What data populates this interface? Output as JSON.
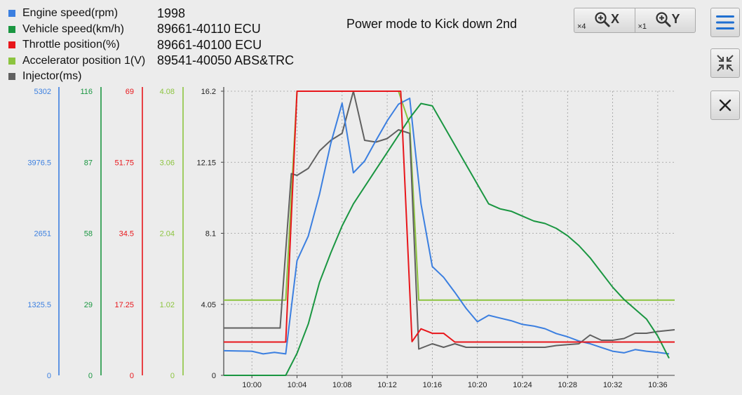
{
  "legend": [
    {
      "label": "Engine speed(rpm)",
      "color": "#3b7fe0"
    },
    {
      "label": "Vehicle speed(km/h)",
      "color": "#1a9641"
    },
    {
      "label": "Throttle position(%)",
      "color": "#e8161b"
    },
    {
      "label": "Accelerator position 1(V)",
      "color": "#8cc43f"
    },
    {
      "label": "Injector(ms)",
      "color": "#606060"
    }
  ],
  "info": [
    "1998",
    "89661-40110 ECU",
    "89661-40100 ECU",
    "89541-40050 ABS&TRC"
  ],
  "title": "Power mode to Kick down 2nd",
  "toolbar": {
    "zoom_x": {
      "multiplier": "×4",
      "axis": "X",
      "icon": "zoom-in-icon"
    },
    "zoom_y": {
      "multiplier": "×1",
      "axis": "Y",
      "icon": "zoom-in-icon"
    },
    "menu_icon": "hamburger-menu-icon",
    "shrink_icon": "collapse-arrows-icon",
    "close_icon": "close-icon"
  },
  "chart_data": {
    "type": "line",
    "x_ticks": [
      "10:00",
      "10:04",
      "10:08",
      "10:12",
      "10:16",
      "10:20",
      "10:24",
      "10:28",
      "10:32",
      "10:36"
    ],
    "x_tick_values": [
      0,
      4,
      8,
      12,
      16,
      20,
      24,
      28,
      32,
      36
    ],
    "xlim": [
      -2.5,
      37.5
    ],
    "grid": true,
    "axes": [
      {
        "name": "Engine speed(rpm)",
        "color": "#3b7fe0",
        "ticks": [
          "0",
          "1325.5",
          "2651",
          "3976.5",
          "5302"
        ],
        "ylim": [
          0,
          5302
        ]
      },
      {
        "name": "Vehicle speed(km/h)",
        "color": "#1a9641",
        "ticks": [
          "0",
          "29",
          "58",
          "87",
          "116"
        ],
        "ylim": [
          0,
          116
        ]
      },
      {
        "name": "Throttle position(%)",
        "color": "#e8161b",
        "ticks": [
          "0",
          "17.25",
          "34.5",
          "51.75",
          "69"
        ],
        "ylim": [
          0,
          69
        ]
      },
      {
        "name": "Accelerator position 1(V)",
        "color": "#8cc43f",
        "ticks": [
          "0",
          "1.02",
          "2.04",
          "3.06",
          "4.08"
        ],
        "ylim": [
          0,
          4.08
        ]
      },
      {
        "name": "Injector(ms)",
        "color": "#606060",
        "ticks": [
          "0",
          "4.05",
          "8.1",
          "12.15",
          "16.2"
        ],
        "ylim": [
          0,
          16.2
        ]
      }
    ],
    "series": [
      {
        "name": "Engine speed(rpm)",
        "color": "#3b7fe0",
        "axis": 0,
        "points": [
          [
            -2.5,
            460
          ],
          [
            0,
            450
          ],
          [
            1,
            400
          ],
          [
            2,
            430
          ],
          [
            3,
            400
          ],
          [
            4,
            2140
          ],
          [
            5,
            2600
          ],
          [
            6,
            3380
          ],
          [
            7,
            4330
          ],
          [
            8,
            5080
          ],
          [
            9,
            3780
          ],
          [
            10,
            4000
          ],
          [
            11,
            4380
          ],
          [
            12,
            4750
          ],
          [
            13,
            5060
          ],
          [
            14,
            5170
          ],
          [
            15,
            3200
          ],
          [
            16,
            2030
          ],
          [
            17,
            1830
          ],
          [
            18,
            1550
          ],
          [
            19,
            1250
          ],
          [
            20,
            1000
          ],
          [
            21,
            1120
          ],
          [
            22,
            1070
          ],
          [
            23,
            1020
          ],
          [
            24,
            950
          ],
          [
            25,
            920
          ],
          [
            26,
            870
          ],
          [
            27,
            780
          ],
          [
            28,
            720
          ],
          [
            29,
            640
          ],
          [
            30,
            590
          ],
          [
            31,
            520
          ],
          [
            32,
            450
          ],
          [
            33,
            420
          ],
          [
            34,
            480
          ],
          [
            35,
            450
          ],
          [
            36,
            430
          ],
          [
            37,
            400
          ]
        ]
      },
      {
        "name": "Vehicle speed(km/h)",
        "color": "#1a9641",
        "axis": 1,
        "points": [
          [
            -2.5,
            0
          ],
          [
            3,
            0
          ],
          [
            4,
            9
          ],
          [
            5,
            21
          ],
          [
            6,
            38
          ],
          [
            7,
            50
          ],
          [
            8,
            61
          ],
          [
            9,
            70
          ],
          [
            10,
            77
          ],
          [
            11,
            84
          ],
          [
            12,
            91
          ],
          [
            13,
            98
          ],
          [
            14,
            105
          ],
          [
            15,
            111
          ],
          [
            16,
            110
          ],
          [
            17,
            102
          ],
          [
            18,
            94
          ],
          [
            19,
            86
          ],
          [
            20,
            78
          ],
          [
            21,
            70
          ],
          [
            22,
            68
          ],
          [
            23,
            67
          ],
          [
            24,
            65
          ],
          [
            25,
            63
          ],
          [
            26,
            62
          ],
          [
            27,
            60
          ],
          [
            28,
            57
          ],
          [
            29,
            53
          ],
          [
            30,
            48
          ],
          [
            31,
            42
          ],
          [
            32,
            36
          ],
          [
            33,
            31
          ],
          [
            34,
            27
          ],
          [
            35,
            23
          ],
          [
            36,
            16
          ],
          [
            37,
            7
          ]
        ]
      },
      {
        "name": "Throttle position(%)",
        "color": "#e8161b",
        "axis": 2,
        "points": [
          [
            -2.5,
            8.1
          ],
          [
            3,
            8.1
          ],
          [
            4,
            69
          ],
          [
            13.2,
            69
          ],
          [
            14.2,
            8.2
          ],
          [
            15,
            11.3
          ],
          [
            16,
            10.2
          ],
          [
            17,
            10.2
          ],
          [
            18,
            8.1
          ],
          [
            37.5,
            8.1
          ]
        ]
      },
      {
        "name": "Accelerator position 1(V)",
        "color": "#8cc43f",
        "axis": 3,
        "points": [
          [
            -2.5,
            1.08
          ],
          [
            3,
            1.08
          ],
          [
            4,
            4.08
          ],
          [
            13,
            4.08
          ],
          [
            14,
            3.6
          ],
          [
            14.8,
            1.08
          ],
          [
            37.5,
            1.08
          ]
        ]
      },
      {
        "name": "Injector(ms)",
        "color": "#606060",
        "axis": 4,
        "points": [
          [
            -2.5,
            2.7
          ],
          [
            2.5,
            2.7
          ],
          [
            3.5,
            11.5
          ],
          [
            4,
            11.4
          ],
          [
            5,
            11.8
          ],
          [
            6,
            12.8
          ],
          [
            7,
            13.4
          ],
          [
            8,
            13.8
          ],
          [
            9,
            16.2
          ],
          [
            10,
            13.4
          ],
          [
            11,
            13.3
          ],
          [
            12,
            13.5
          ],
          [
            13,
            14.0
          ],
          [
            14,
            13.8
          ],
          [
            14.8,
            1.5
          ],
          [
            16,
            1.8
          ],
          [
            17,
            1.6
          ],
          [
            18,
            1.8
          ],
          [
            19,
            1.6
          ],
          [
            20,
            1.6
          ],
          [
            22,
            1.6
          ],
          [
            24,
            1.6
          ],
          [
            26,
            1.6
          ],
          [
            27,
            1.7
          ],
          [
            29,
            1.8
          ],
          [
            30,
            2.3
          ],
          [
            31,
            2.0
          ],
          [
            32,
            2.0
          ],
          [
            33,
            2.1
          ],
          [
            34,
            2.4
          ],
          [
            35,
            2.4
          ],
          [
            36,
            2.5
          ],
          [
            37.5,
            2.6
          ]
        ]
      }
    ]
  }
}
